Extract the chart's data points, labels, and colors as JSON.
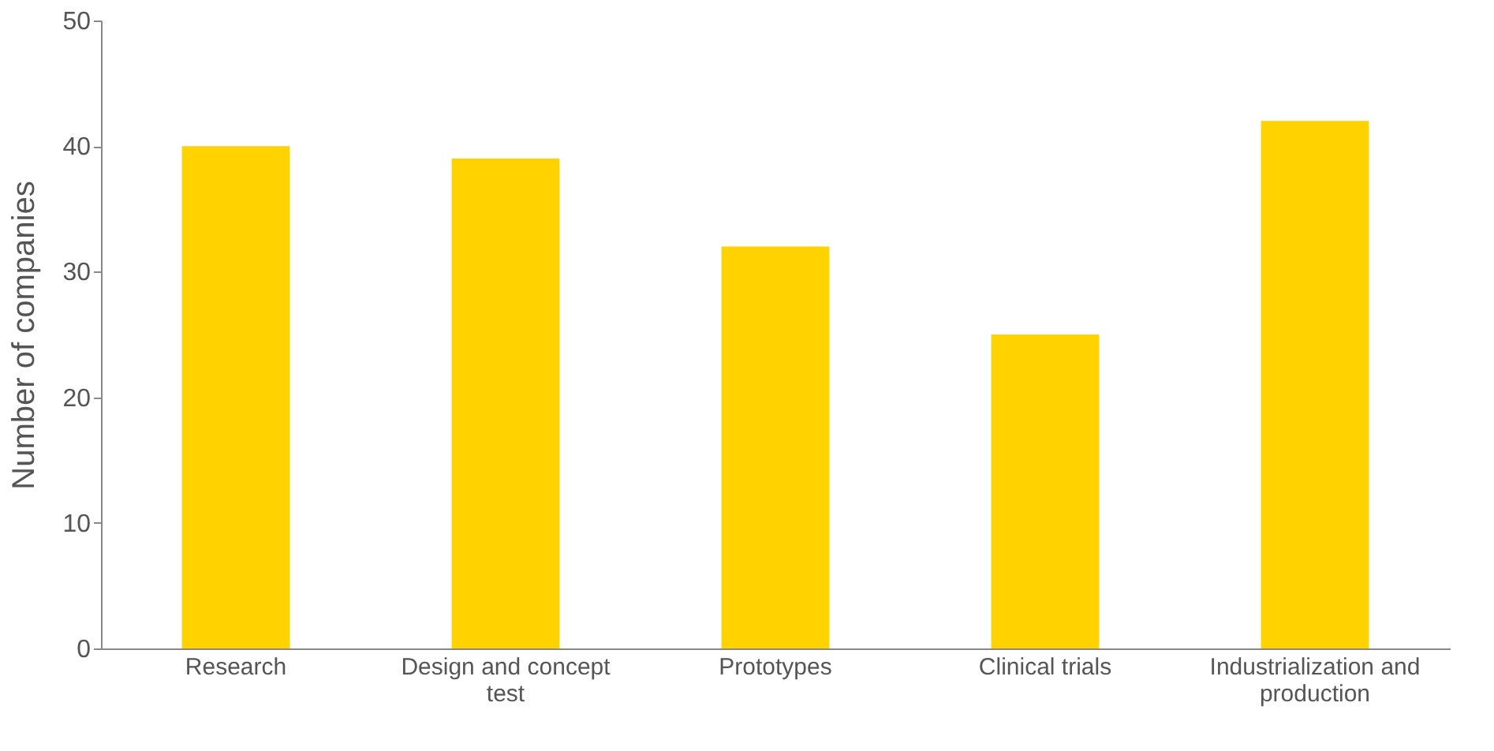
{
  "chart_data": {
    "type": "bar",
    "ylabel": "Number of companies",
    "categories": [
      "Research",
      "Design and concept test",
      "Prototypes",
      "Clinical trials",
      "Industrialization and production"
    ],
    "values": [
      40,
      39,
      32,
      25,
      42
    ],
    "color": "#ffd200",
    "ylim": [
      0,
      50
    ],
    "yticks": [
      0,
      10,
      20,
      30,
      40,
      50
    ],
    "grid": false
  }
}
